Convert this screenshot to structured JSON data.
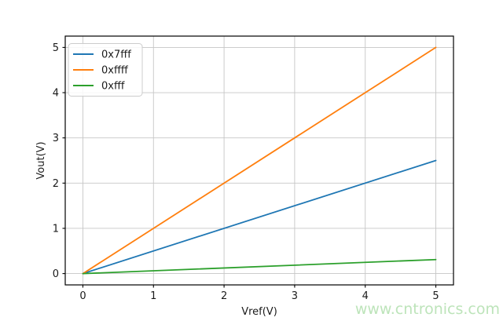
{
  "figure": {
    "background": "#ffffff",
    "watermark": {
      "text": "www.cntronics.com",
      "color": "#bde4ba"
    }
  },
  "chart_data": {
    "type": "line",
    "title": "",
    "xlabel": "Vref(V)",
    "ylabel": "Vout(V)",
    "xlim": [
      -0.25,
      5.25
    ],
    "ylim": [
      -0.25,
      5.25
    ],
    "xticks": [
      0,
      1,
      2,
      3,
      4,
      5
    ],
    "yticks": [
      0,
      1,
      2,
      3,
      4,
      5
    ],
    "xtick_labels": [
      "0",
      "1",
      "2",
      "3",
      "4",
      "5"
    ],
    "ytick_labels": [
      "0",
      "1",
      "2",
      "3",
      "4",
      "5"
    ],
    "grid": true,
    "grid_color": "#c6c6c6",
    "spine_color": "#000000",
    "tick_color": "#000000",
    "text_color": "#1a1a1a",
    "legend_position": "upper-left",
    "legend_border_color": "#cccccc",
    "legend_background": "rgba(255,255,255,0.85)",
    "x": [
      0,
      5
    ],
    "series": [
      {
        "name": "0x7fff",
        "color": "#1f77b4",
        "values": [
          0,
          2.5
        ]
      },
      {
        "name": "0xffff",
        "color": "#ff7f0e",
        "values": [
          0,
          5
        ]
      },
      {
        "name": "0xfff",
        "color": "#2ca02c",
        "values": [
          0,
          0.31
        ]
      }
    ]
  }
}
